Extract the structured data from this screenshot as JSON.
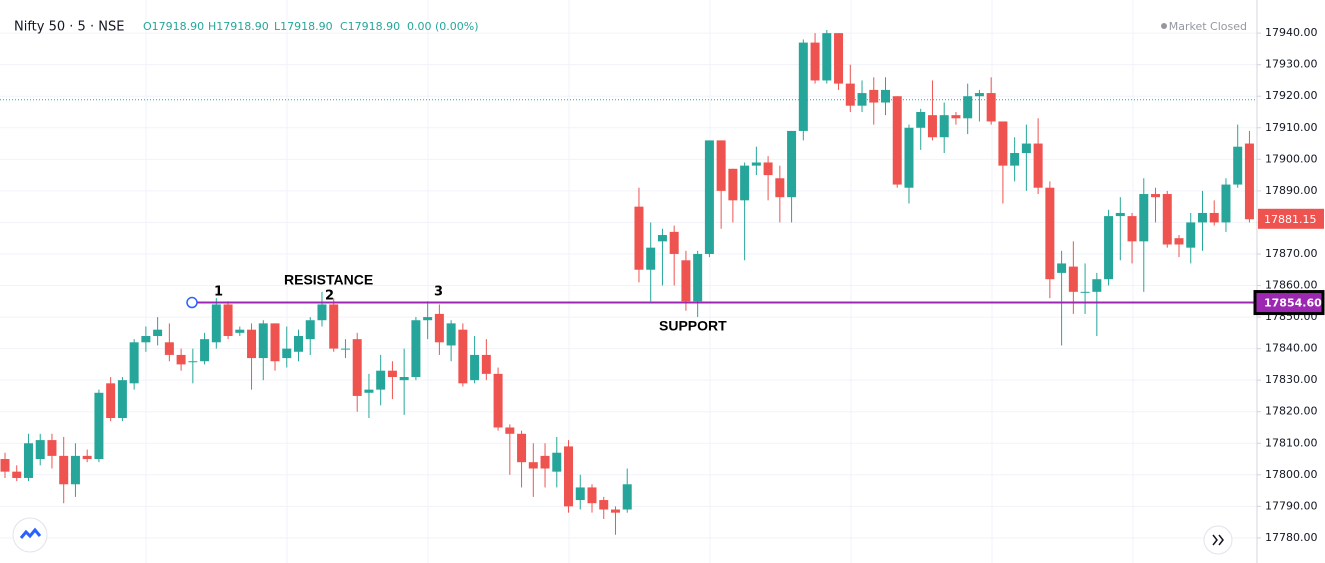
{
  "chart_data": {
    "type": "candlestick",
    "title": "Nifty 50 · 5 · NSE",
    "ohlc_legend": [
      "O17918.90",
      "H17918.90",
      "L17918.90",
      "C17918.90",
      "0.00 (0.00%)"
    ],
    "market_status": "Market Closed",
    "up_color": "#26a69a",
    "down_color": "#ef5350",
    "open": [
      17805,
      17801,
      17799,
      17805,
      17811,
      17806,
      17797,
      17806,
      17805,
      17829,
      17818,
      17829,
      17842,
      17844,
      17842,
      17838,
      17836,
      17836,
      17842,
      17854,
      17845,
      17846,
      17837,
      17848,
      17837,
      17839,
      17843,
      17849,
      17854,
      17840,
      17843,
      17826,
      17827,
      17833,
      17830,
      17831,
      17849,
      17851,
      17841,
      17846,
      17830,
      17838,
      17832,
      17815,
      17813,
      17804,
      17806,
      17801,
      17809,
      17792,
      17796,
      17792,
      17789,
      17789,
      17885,
      17865,
      17874,
      17877,
      17868,
      17855,
      17870,
      17906,
      17897,
      17887,
      17898,
      17899,
      17894,
      17888,
      17909,
      17937,
      17925,
      17940,
      17924,
      17917,
      17922,
      17918,
      17920,
      17891,
      17910,
      17914,
      17907,
      17914,
      17913,
      17920,
      17921,
      17912,
      17898,
      17902,
      17905,
      17891,
      17864,
      17866,
      17858,
      17858,
      17862,
      17882,
      17882,
      17874,
      17889,
      17889,
      17875,
      17872,
      17880,
      17883,
      17880,
      17892,
      17905
    ],
    "high": [
      17807,
      17803,
      17813,
      17813,
      17813,
      17812,
      17810,
      17808,
      17827,
      17831,
      17831,
      17843,
      17847,
      17850,
      17848,
      17840,
      17840,
      17845,
      17856,
      17855,
      17847,
      17848,
      17849,
      17848,
      17847,
      17846,
      17850,
      17858,
      17856,
      17843,
      17845,
      17832,
      17838,
      17836,
      17840,
      17850,
      17855,
      17854,
      17849,
      17848,
      17844,
      17843,
      17834,
      17816,
      17814,
      17810,
      17810,
      17812,
      17811,
      17800,
      17797,
      17793,
      17790,
      17802,
      17891,
      17880,
      17878,
      17879,
      17871,
      17871,
      17906,
      17906,
      17897,
      17899,
      17904,
      17901,
      17898,
      17909,
      17938,
      17940,
      17941,
      17940,
      17930,
      17925,
      17926,
      17926,
      17920,
      17911,
      17916,
      17925,
      17918,
      17915,
      17924,
      17922,
      17926,
      17912,
      17907,
      17911,
      17913,
      17893,
      17871,
      17874,
      17867,
      17864,
      17884,
      17888,
      17883,
      17894,
      17891,
      17890,
      17876,
      17883,
      17890,
      17887,
      17894,
      17911,
      17909
    ],
    "low": [
      17799,
      17798,
      17798,
      17803,
      17802,
      17791,
      17793,
      17804,
      17804,
      17817,
      17817,
      17827,
      17839,
      17841,
      17836,
      17833,
      17829,
      17835,
      17840,
      17843,
      17844,
      17827,
      17830,
      17833,
      17834,
      17836,
      17838,
      17847,
      17839,
      17837,
      17820,
      17818,
      17822,
      17824,
      17819,
      17830,
      17843,
      17838,
      17836,
      17828,
      17829,
      17830,
      17814,
      17800,
      17796,
      17793,
      17796,
      17796,
      17788,
      17789,
      17788,
      17786,
      17781,
      17788,
      17861,
      17855,
      17860,
      17860,
      17852,
      17850,
      17869,
      17878,
      17880,
      17868,
      17895,
      17887,
      17880,
      17880,
      17906,
      17924,
      17924,
      17922,
      17915,
      17915,
      17911,
      17914,
      17891,
      17886,
      17903,
      17906,
      17902,
      17911,
      17908,
      17912,
      17911,
      17886,
      17893,
      17890,
      17889,
      17856,
      17841,
      17851,
      17851,
      17844,
      17860,
      17868,
      17867,
      17858,
      17880,
      17872,
      17869,
      17867,
      17871,
      17879,
      17877,
      17891,
      17880
    ],
    "close": [
      17801,
      17799,
      17810,
      17811,
      17806,
      17797,
      17806,
      17805,
      17826,
      17818,
      17830,
      17842,
      17844,
      17846,
      17838,
      17835,
      17836,
      17843,
      17854,
      17844,
      17846,
      17837,
      17848,
      17836,
      17840,
      17844,
      17849,
      17854,
      17840,
      17840,
      17825,
      17827,
      17833,
      17831,
      17831,
      17849,
      17850,
      17842,
      17848,
      17829,
      17838,
      17832,
      17815,
      17813,
      17804,
      17802,
      17802,
      17807,
      17790,
      17796,
      17791,
      17789,
      17788,
      17797,
      17865,
      17872,
      17876,
      17870,
      17855,
      17870,
      17906,
      17890,
      17887,
      17898,
      17899,
      17895,
      17888,
      17909,
      17937,
      17925,
      17940,
      17924,
      17917,
      17921,
      17918,
      17922,
      17892,
      17910,
      17915,
      17907,
      17914,
      17913,
      17920,
      17921,
      17912,
      17898,
      17902,
      17905,
      17891,
      17862,
      17867,
      17858,
      17858,
      17862,
      17882,
      17883,
      17874,
      17889,
      17888,
      17873,
      17873,
      17880,
      17883,
      17880,
      17892,
      17904,
      17881
    ],
    "ylim": [
      17776.8,
      17950.5
    ],
    "yticks": [
      {
        "value": 17780,
        "label": "17780.00"
      },
      {
        "value": 17790,
        "label": "17790.00"
      },
      {
        "value": 17800,
        "label": "17800.00"
      },
      {
        "value": 17810,
        "label": "17810.00"
      },
      {
        "value": 17820,
        "label": "17820.00"
      },
      {
        "value": 17830,
        "label": "17830.00"
      },
      {
        "value": 17840,
        "label": "17840.00"
      },
      {
        "value": 17850,
        "label": "17850.00"
      },
      {
        "value": 17860,
        "label": "17860.00"
      },
      {
        "value": 17870,
        "label": "17870.00"
      },
      {
        "value": 17880,
        "label": "17880.00"
      },
      {
        "value": 17890,
        "label": "17890.00"
      },
      {
        "value": 17900,
        "label": "17900.00"
      },
      {
        "value": 17910,
        "label": "17910.00"
      },
      {
        "value": 17920,
        "label": "17920.00"
      },
      {
        "value": 17930,
        "label": "17930.00"
      },
      {
        "value": 17940,
        "label": "17940.00"
      }
    ],
    "grid": true,
    "previous_close_line": 17918.9,
    "last_price": {
      "value": 17881.15,
      "label": "17881.15"
    },
    "support_line": {
      "value": 17854.6,
      "label": "17854.60",
      "color": "#9c27b0"
    },
    "annotations": [
      "RESISTANCE",
      "SUPPORT",
      "1",
      "2",
      "3"
    ]
  }
}
